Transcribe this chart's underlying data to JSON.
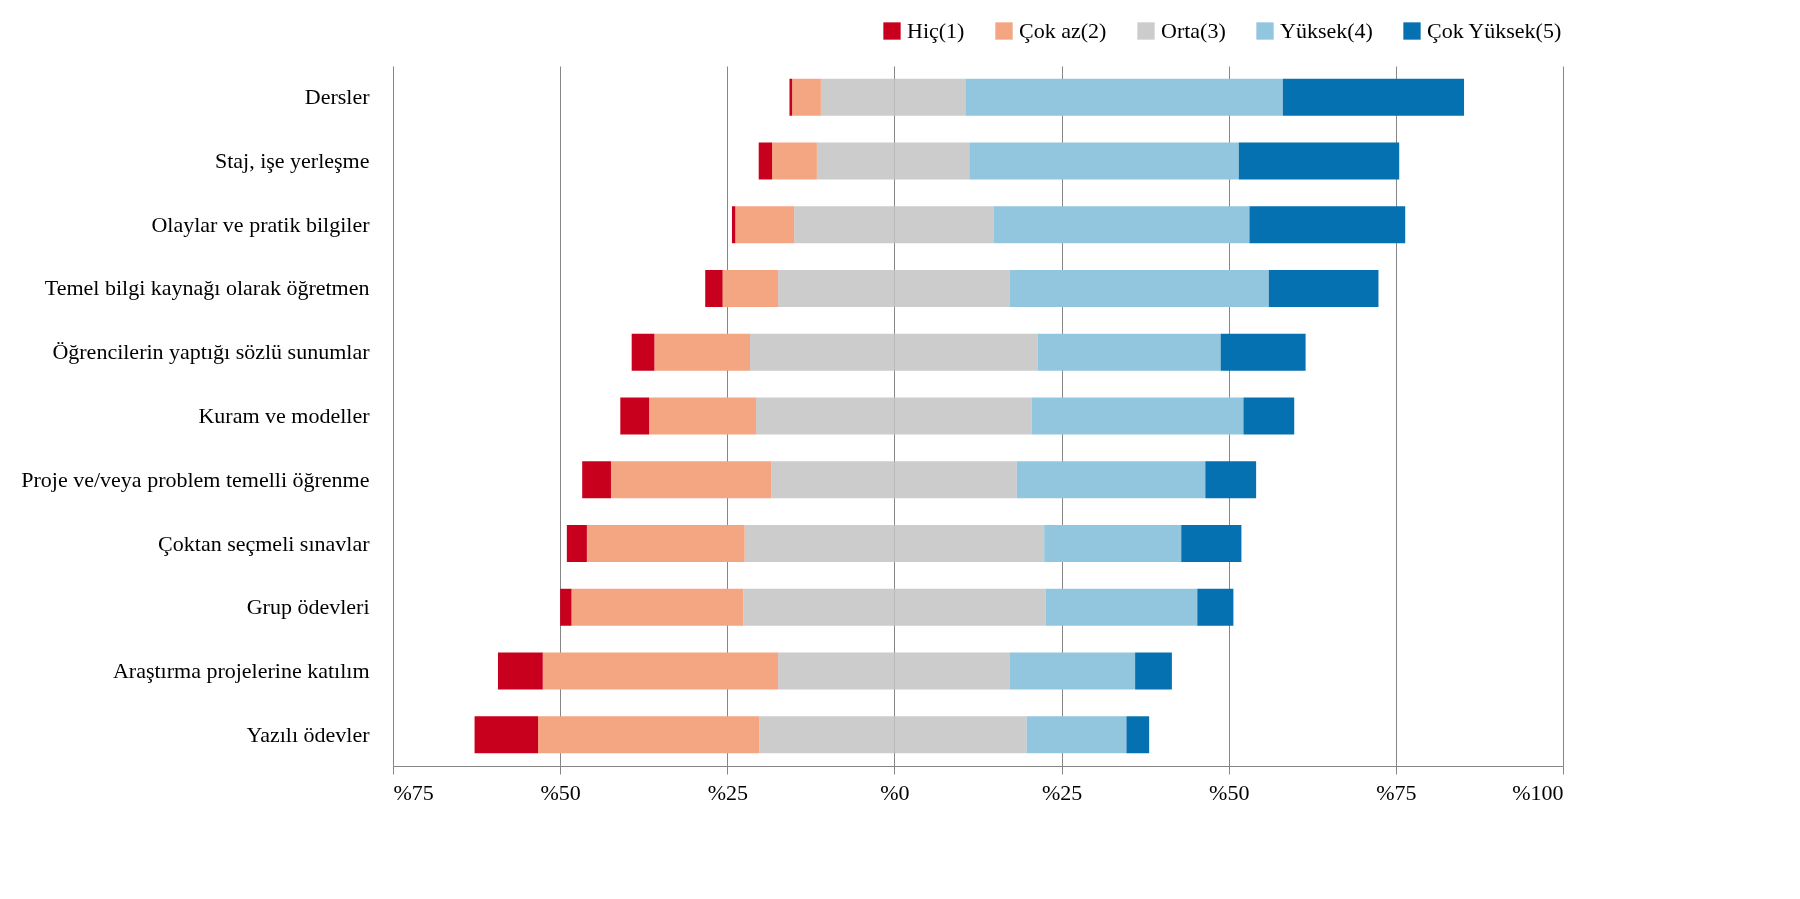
{
  "chart_data": {
    "type": "bar",
    "orientation": "horizontal",
    "stacked": true,
    "categories": [
      "Dersler",
      "Staj, işe yerleşme",
      "Olaylar ve pratik bilgiler",
      "Temel bilgi kaynağı olarak öğretmen",
      "Öğrencilerin yaptığı sözlü sunumlar",
      "Kuram ve modeller",
      "Proje ve/veya problem temelli öğrenme",
      "Çoktan seçmeli sınavlar",
      "Grup ödevleri",
      "Araştırma projelerine katılım",
      "Yazılı ödevler"
    ],
    "series": [
      {
        "name": "Orta(3)",
        "color": "#cccccc",
        "values": [
          -11.0,
          -11.6,
          -15.0,
          -17.4,
          -21.6,
          -20.7,
          -18.4,
          -22.4,
          -22.6,
          -17.4,
          -20.2
        ]
      },
      {
        "color": "#cccccc",
        "values": [
          10.7,
          11.2,
          14.8,
          17.2,
          21.4,
          20.5,
          18.3,
          22.4,
          22.6,
          17.2,
          19.8
        ]
      },
      {
        "name": "Çok az(2)",
        "color": "#f4a582",
        "values": [
          -4.3,
          -6.7,
          -8.8,
          -8.3,
          -14.3,
          -16.0,
          -24.0,
          -23.6,
          -25.7,
          -35.2,
          -33.1
        ]
      },
      {
        "name": "Yüksek(4)",
        "color": "#92c5de",
        "values": [
          47.4,
          40.3,
          38.3,
          38.8,
          27.4,
          31.7,
          28.2,
          20.5,
          22.7,
          18.8,
          14.9
        ]
      },
      {
        "name": "Hiç(1)",
        "color": "#c8001e",
        "values": [
          -0.4,
          -2.0,
          -0.5,
          -2.6,
          -3.4,
          -4.3,
          -4.3,
          -3.0,
          -1.7,
          -6.7,
          -9.5
        ]
      },
      {
        "name": "Çok Yüksek(5)",
        "color": "#0571b0",
        "values": [
          27.1,
          24.0,
          23.3,
          16.4,
          12.7,
          7.6,
          7.6,
          9.0,
          5.4,
          5.5,
          3.4
        ]
      }
    ],
    "xlim": [
      -75,
      100
    ],
    "xticks": [
      {
        "value": -75,
        "label": "%75"
      },
      {
        "value": -50,
        "label": "%50"
      },
      {
        "value": -25,
        "label": "%25"
      },
      {
        "value": 0,
        "label": "%0"
      },
      {
        "value": 25,
        "label": "%25"
      },
      {
        "value": 50,
        "label": "%50"
      },
      {
        "value": 75,
        "label": "%75"
      },
      {
        "value": 100,
        "label": "%100"
      }
    ],
    "grid": "x",
    "legend": "top right"
  }
}
